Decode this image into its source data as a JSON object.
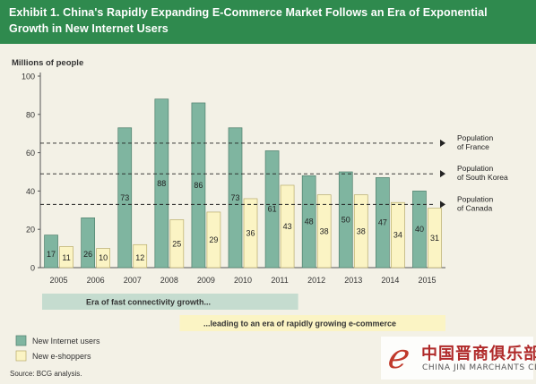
{
  "header": {
    "title_line1": "Exhibit 1. China's Rapidly Expanding E-Commerce Market Follows an Era of Exponential",
    "title_line2": "Growth in New Internet Users"
  },
  "chart_data": {
    "type": "bar",
    "ylabel": "Millions of people",
    "ylim": [
      0,
      100
    ],
    "yticks": [
      0,
      20,
      40,
      60,
      80,
      100
    ],
    "categories": [
      "2005",
      "2006",
      "2007",
      "2008",
      "2009",
      "2010",
      "2011",
      "2012",
      "2013",
      "2014",
      "2015"
    ],
    "series": [
      {
        "name": "New Internet users",
        "color": "#7fb5a0",
        "values": [
          17,
          26,
          73,
          88,
          86,
          73,
          61,
          48,
          50,
          47,
          40
        ]
      },
      {
        "name": "New e-shoppers",
        "color": "#fbf4c4",
        "values": [
          11,
          10,
          12,
          25,
          29,
          36,
          43,
          38,
          38,
          34,
          31
        ]
      }
    ],
    "reference_lines": [
      {
        "label": [
          "Population",
          "of France"
        ],
        "value": 65
      },
      {
        "label": [
          "Population",
          "of South Korea"
        ],
        "value": 49
      },
      {
        "label": [
          "Population",
          "of Canada"
        ],
        "value": 33
      }
    ],
    "phases": [
      {
        "label": "Era of fast connectivity growth...",
        "color": "#c5dccf",
        "from": "2007",
        "to": "2011"
      },
      {
        "label": "...leading to an era of rapidly growing e-commerce",
        "color": "#fbf4c4",
        "from": "2010",
        "to": "2015"
      }
    ],
    "legend_position": "bottom-left",
    "grid": false
  },
  "footer": {
    "source": "Source: BCG analysis."
  },
  "watermark": {
    "chinese": "中国晋商俱乐部",
    "english": "CHINA JIN MARCHANTS CLUB",
    "logo_glyph": "ℯ"
  }
}
